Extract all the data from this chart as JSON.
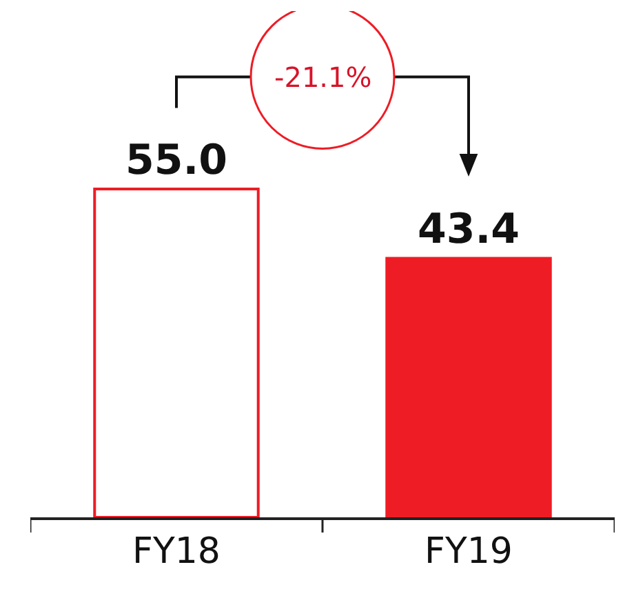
{
  "chart_data": {
    "type": "bar",
    "categories": [
      "FY18",
      "FY19"
    ],
    "series": [
      {
        "color": "#ee1c25",
        "colors": [
          "#ffffff",
          "#ee1c25"
        ],
        "values": [
          55.0,
          43.4
        ],
        "value_labels": [
          "55.0",
          "43.4"
        ]
      }
    ],
    "annotations": [
      "-21.1%"
    ],
    "legend": false
  }
}
